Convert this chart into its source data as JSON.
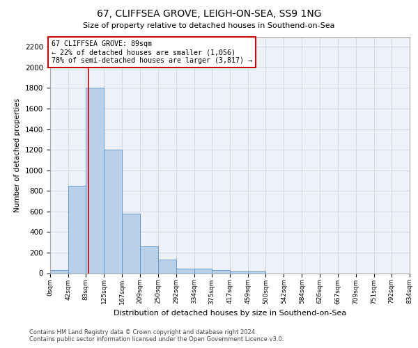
{
  "title": "67, CLIFFSEA GROVE, LEIGH-ON-SEA, SS9 1NG",
  "subtitle": "Size of property relative to detached houses in Southend-on-Sea",
  "xlabel": "Distribution of detached houses by size in Southend-on-Sea",
  "ylabel": "Number of detached properties",
  "bin_edges": [
    0,
    42,
    83,
    125,
    167,
    209,
    250,
    292,
    334,
    375,
    417,
    459,
    500,
    542,
    584,
    626,
    667,
    709,
    751,
    792,
    834
  ],
  "bar_heights": [
    30,
    850,
    1800,
    1200,
    580,
    260,
    130,
    45,
    45,
    30,
    20,
    15,
    0,
    0,
    0,
    0,
    0,
    0,
    0,
    0
  ],
  "bar_color": "#b8d0ea",
  "bar_edge_color": "#6699cc",
  "red_line_x": 89,
  "red_line_color": "#cc0000",
  "annotation_box_color": "#cc0000",
  "annotation_text_line1": "67 CLIFFSEA GROVE: 89sqm",
  "annotation_text_line2": "← 22% of detached houses are smaller (1,056)",
  "annotation_text_line3": "78% of semi-detached houses are larger (3,817) →",
  "ylim": [
    0,
    2300
  ],
  "yticks": [
    0,
    200,
    400,
    600,
    800,
    1000,
    1200,
    1400,
    1600,
    1800,
    2000,
    2200
  ],
  "tick_labels": [
    "0sqm",
    "42sqm",
    "83sqm",
    "125sqm",
    "167sqm",
    "209sqm",
    "250sqm",
    "292sqm",
    "334sqm",
    "375sqm",
    "417sqm",
    "459sqm",
    "500sqm",
    "542sqm",
    "584sqm",
    "626sqm",
    "667sqm",
    "709sqm",
    "751sqm",
    "792sqm",
    "834sqm"
  ],
  "footer_line1": "Contains HM Land Registry data © Crown copyright and database right 2024.",
  "footer_line2": "Contains public sector information licensed under the Open Government Licence v3.0.",
  "bg_color": "#eef2f8",
  "grid_color": "#d0d8e8"
}
